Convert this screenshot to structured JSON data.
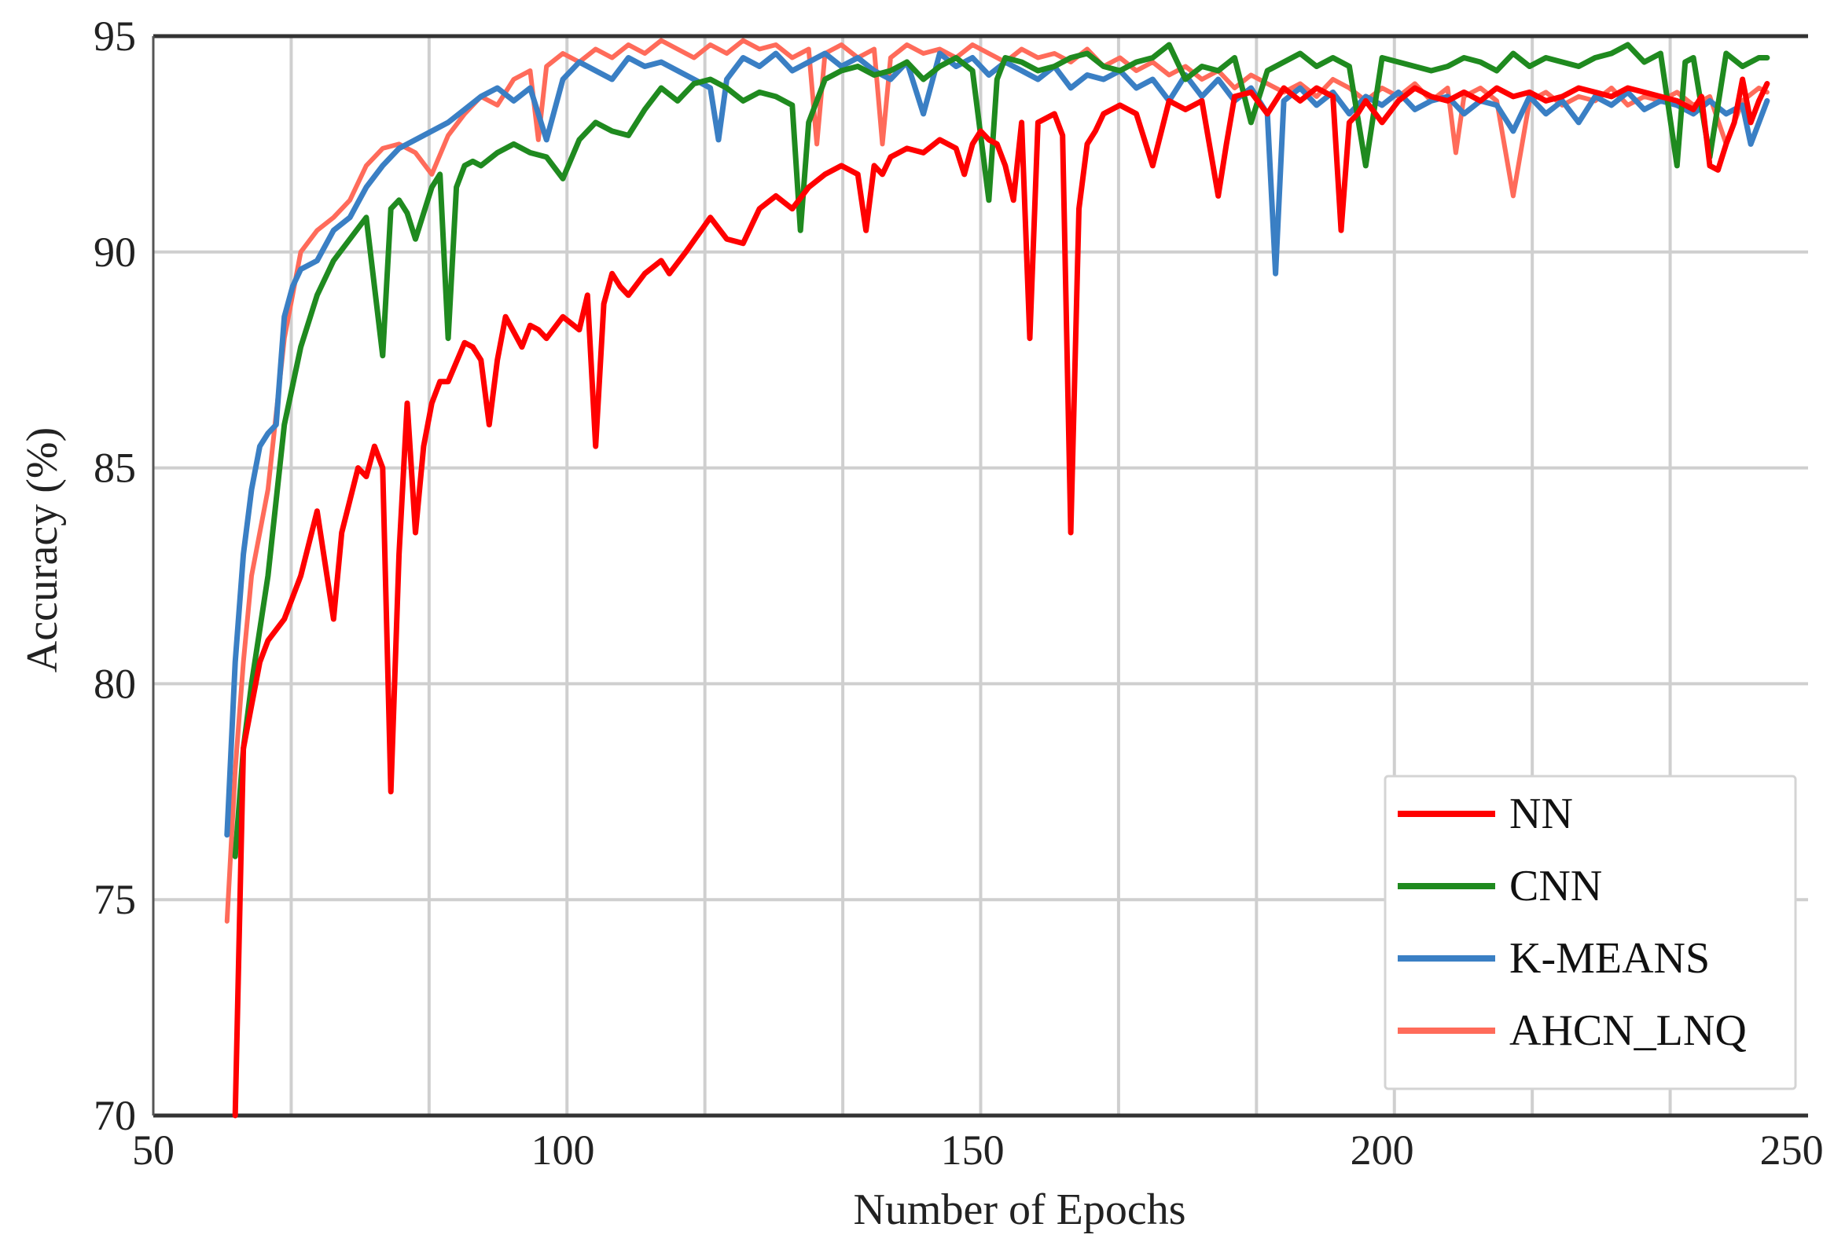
{
  "chart_data": {
    "type": "line",
    "title": "",
    "xlabel": "Number of Epochs",
    "ylabel": "Accuracy (%)",
    "xlim": [
      50,
      252
    ],
    "ylim": [
      70,
      95
    ],
    "x_ticks": [
      "50",
      "100",
      "150",
      "200",
      "250"
    ],
    "y_ticks": [
      "70",
      "75",
      "80",
      "85",
      "90",
      "95"
    ],
    "grid": true,
    "legend_position": "bottom-right",
    "series": [
      {
        "name": "NN",
        "color": "#ff0000",
        "x": [
          60,
          61,
          62,
          63,
          64,
          66,
          68,
          70,
          72,
          73,
          75,
          76,
          77,
          78,
          79,
          80,
          81,
          82,
          83,
          84,
          85,
          86,
          88,
          89,
          90,
          91,
          92,
          93,
          95,
          96,
          97,
          98,
          100,
          102,
          103,
          104,
          105,
          106,
          107,
          108,
          110,
          112,
          113,
          115,
          118,
          120,
          122,
          124,
          126,
          128,
          130,
          132,
          134,
          136,
          137,
          138,
          139,
          140,
          142,
          144,
          146,
          148,
          149,
          150,
          151,
          152,
          153,
          154,
          155,
          156,
          157,
          158,
          160,
          161,
          162,
          163,
          164,
          165,
          166,
          168,
          170,
          172,
          174,
          176,
          178,
          180,
          181,
          182,
          184,
          186,
          188,
          190,
          192,
          194,
          195,
          196,
          197,
          198,
          200,
          202,
          204,
          206,
          208,
          210,
          212,
          214,
          216,
          218,
          220,
          222,
          224,
          226,
          228,
          230,
          232,
          234,
          236,
          238,
          239,
          240,
          241,
          242,
          243,
          244,
          245,
          246,
          247
        ],
        "y": [
          70.0,
          78.5,
          79.5,
          80.5,
          81.0,
          81.5,
          82.5,
          84.0,
          81.5,
          83.5,
          85.0,
          84.8,
          85.5,
          85.0,
          77.5,
          83.0,
          86.5,
          83.5,
          85.5,
          86.5,
          87.0,
          87.0,
          87.9,
          87.8,
          87.5,
          86.0,
          87.5,
          88.5,
          87.8,
          88.3,
          88.2,
          88.0,
          88.5,
          88.2,
          89.0,
          85.5,
          88.8,
          89.5,
          89.2,
          89.0,
          89.5,
          89.8,
          89.5,
          90.0,
          90.8,
          90.3,
          90.2,
          91.0,
          91.3,
          91.0,
          91.5,
          91.8,
          92.0,
          91.8,
          90.5,
          92.0,
          91.8,
          92.2,
          92.4,
          92.3,
          92.6,
          92.4,
          91.8,
          92.5,
          92.8,
          92.6,
          92.5,
          92.0,
          91.2,
          93.0,
          88.0,
          93.0,
          93.2,
          92.7,
          83.5,
          91.0,
          92.5,
          92.8,
          93.2,
          93.4,
          93.2,
          92.0,
          93.5,
          93.3,
          93.5,
          91.3,
          92.5,
          93.6,
          93.7,
          93.2,
          93.8,
          93.5,
          93.8,
          93.6,
          90.5,
          93.0,
          93.2,
          93.5,
          93.0,
          93.5,
          93.8,
          93.6,
          93.5,
          93.7,
          93.5,
          93.8,
          93.6,
          93.7,
          93.5,
          93.6,
          93.8,
          93.7,
          93.6,
          93.8,
          93.7,
          93.6,
          93.5,
          93.3,
          93.6,
          92.0,
          91.9,
          92.5,
          93.0,
          94.0,
          93.0,
          93.5,
          93.9
        ]
      },
      {
        "name": "CNN",
        "color": "#1f8a1f",
        "x": [
          60,
          61,
          62,
          64,
          66,
          68,
          70,
          72,
          74,
          76,
          78,
          79,
          80,
          81,
          82,
          84,
          85,
          86,
          87,
          88,
          89,
          90,
          92,
          94,
          96,
          98,
          100,
          102,
          104,
          106,
          108,
          110,
          112,
          114,
          116,
          118,
          120,
          122,
          124,
          126,
          128,
          129,
          130,
          131,
          132,
          134,
          136,
          138,
          140,
          142,
          144,
          146,
          148,
          150,
          152,
          153,
          154,
          156,
          158,
          160,
          162,
          164,
          166,
          168,
          170,
          172,
          174,
          176,
          178,
          180,
          182,
          184,
          186,
          188,
          190,
          192,
          194,
          196,
          198,
          200,
          202,
          204,
          206,
          208,
          210,
          212,
          214,
          216,
          218,
          220,
          222,
          224,
          226,
          228,
          230,
          232,
          234,
          236,
          237,
          238,
          240,
          242,
          244,
          246,
          247
        ],
        "y": [
          76.0,
          78.5,
          80.0,
          82.5,
          86.0,
          87.8,
          89.0,
          89.8,
          90.3,
          90.8,
          87.6,
          91.0,
          91.2,
          90.9,
          90.3,
          91.5,
          91.8,
          88.0,
          91.5,
          92.0,
          92.1,
          92.0,
          92.3,
          92.5,
          92.3,
          92.2,
          91.7,
          92.6,
          93.0,
          92.8,
          92.7,
          93.3,
          93.8,
          93.5,
          93.9,
          94.0,
          93.8,
          93.5,
          93.7,
          93.6,
          93.4,
          90.5,
          93.0,
          93.5,
          94.0,
          94.2,
          94.3,
          94.1,
          94.2,
          94.4,
          94.0,
          94.3,
          94.5,
          94.2,
          91.2,
          94.0,
          94.5,
          94.4,
          94.2,
          94.3,
          94.5,
          94.6,
          94.3,
          94.2,
          94.4,
          94.5,
          94.8,
          94.0,
          94.3,
          94.2,
          94.5,
          93.0,
          94.2,
          94.4,
          94.6,
          94.3,
          94.5,
          94.3,
          92.0,
          94.5,
          94.4,
          94.3,
          94.2,
          94.3,
          94.5,
          94.4,
          94.2,
          94.6,
          94.3,
          94.5,
          94.4,
          94.3,
          94.5,
          94.6,
          94.8,
          94.4,
          94.6,
          92.0,
          94.4,
          94.5,
          92.2,
          94.6,
          94.3,
          94.5,
          94.5
        ]
      },
      {
        "name": "K-MEANS",
        "color": "#3a7fc4",
        "x": [
          59,
          60,
          61,
          62,
          63,
          64,
          65,
          66,
          67,
          68,
          70,
          72,
          74,
          76,
          78,
          80,
          82,
          84,
          86,
          88,
          90,
          92,
          94,
          96,
          98,
          100,
          102,
          104,
          106,
          108,
          110,
          112,
          114,
          116,
          118,
          119,
          120,
          122,
          124,
          126,
          128,
          130,
          132,
          134,
          136,
          138,
          140,
          142,
          144,
          146,
          148,
          150,
          152,
          154,
          156,
          158,
          160,
          162,
          164,
          166,
          168,
          170,
          172,
          174,
          176,
          178,
          180,
          182,
          184,
          186,
          187,
          188,
          190,
          192,
          194,
          196,
          198,
          200,
          202,
          204,
          206,
          208,
          210,
          212,
          214,
          216,
          218,
          220,
          222,
          224,
          226,
          228,
          230,
          232,
          234,
          236,
          238,
          240,
          242,
          244,
          245,
          246,
          247
        ],
        "y": [
          76.5,
          80.5,
          83.0,
          84.5,
          85.5,
          85.8,
          86.0,
          88.5,
          89.2,
          89.6,
          89.8,
          90.5,
          90.8,
          91.5,
          92.0,
          92.4,
          92.6,
          92.8,
          93.0,
          93.3,
          93.6,
          93.8,
          93.5,
          93.8,
          92.6,
          94.0,
          94.4,
          94.2,
          94.0,
          94.5,
          94.3,
          94.4,
          94.2,
          94.0,
          93.8,
          92.6,
          94.0,
          94.5,
          94.3,
          94.6,
          94.2,
          94.4,
          94.6,
          94.3,
          94.5,
          94.2,
          94.0,
          94.4,
          93.2,
          94.6,
          94.3,
          94.5,
          94.1,
          94.4,
          94.2,
          94.0,
          94.3,
          93.8,
          94.1,
          94.0,
          94.2,
          93.8,
          94.0,
          93.5,
          94.1,
          93.6,
          94.0,
          93.5,
          93.8,
          93.2,
          89.5,
          93.5,
          93.8,
          93.4,
          93.7,
          93.2,
          93.6,
          93.4,
          93.7,
          93.3,
          93.5,
          93.6,
          93.2,
          93.5,
          93.4,
          92.8,
          93.6,
          93.2,
          93.5,
          93.0,
          93.6,
          93.4,
          93.7,
          93.3,
          93.5,
          93.4,
          93.2,
          93.5,
          93.2,
          93.4,
          92.5,
          93.0,
          93.5
        ]
      },
      {
        "name": "AHCN_LNQ",
        "color": "#ff6b5a",
        "x": [
          59,
          60,
          61,
          62,
          64,
          66,
          68,
          70,
          72,
          74,
          76,
          78,
          80,
          82,
          84,
          86,
          88,
          90,
          92,
          94,
          96,
          97,
          98,
          100,
          102,
          104,
          106,
          108,
          110,
          112,
          114,
          116,
          118,
          120,
          122,
          124,
          126,
          128,
          130,
          131,
          132,
          134,
          136,
          138,
          139,
          140,
          142,
          144,
          146,
          148,
          150,
          152,
          154,
          156,
          158,
          160,
          162,
          164,
          166,
          168,
          170,
          172,
          174,
          176,
          178,
          180,
          182,
          184,
          186,
          188,
          190,
          192,
          194,
          196,
          198,
          200,
          202,
          204,
          206,
          208,
          209,
          210,
          212,
          214,
          216,
          218,
          220,
          222,
          224,
          226,
          228,
          230,
          232,
          234,
          236,
          238,
          240,
          242,
          244,
          246,
          247
        ],
        "y": [
          74.5,
          78.0,
          80.5,
          82.5,
          84.5,
          88.0,
          90.0,
          90.5,
          90.8,
          91.2,
          92.0,
          92.4,
          92.5,
          92.3,
          91.8,
          92.7,
          93.2,
          93.6,
          93.4,
          94.0,
          94.2,
          92.6,
          94.3,
          94.6,
          94.4,
          94.7,
          94.5,
          94.8,
          94.6,
          94.9,
          94.7,
          94.5,
          94.8,
          94.6,
          94.9,
          94.7,
          94.8,
          94.5,
          94.7,
          92.5,
          94.6,
          94.8,
          94.5,
          94.7,
          92.5,
          94.5,
          94.8,
          94.6,
          94.7,
          94.5,
          94.8,
          94.6,
          94.4,
          94.7,
          94.5,
          94.6,
          94.4,
          94.7,
          94.3,
          94.5,
          94.2,
          94.4,
          94.1,
          94.3,
          94.0,
          94.2,
          93.8,
          94.1,
          93.9,
          93.7,
          93.9,
          93.6,
          94.0,
          93.8,
          93.5,
          93.8,
          93.6,
          93.9,
          93.5,
          93.8,
          92.3,
          93.6,
          93.8,
          93.5,
          91.3,
          93.5,
          93.7,
          93.4,
          93.6,
          93.5,
          93.8,
          93.4,
          93.6,
          93.5,
          93.7,
          93.4,
          93.6,
          92.5,
          93.5,
          93.8,
          93.7
        ]
      }
    ]
  }
}
